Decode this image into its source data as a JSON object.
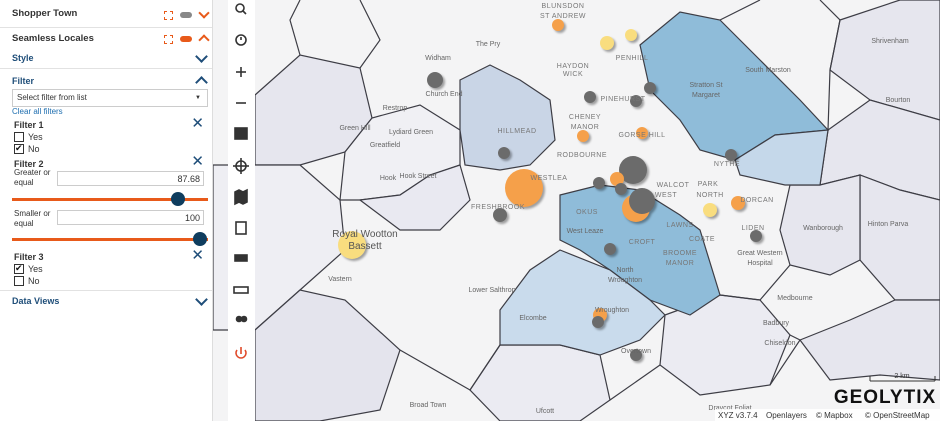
{
  "panel": {
    "layers": [
      {
        "name": "Shopper Town"
      },
      {
        "name": "Seamless Locales"
      }
    ],
    "sections": {
      "style": "Style",
      "filter": "Filter",
      "data_views": "Data Views"
    },
    "filter_select": "Select filter from list",
    "clear_all": "Clear all filters",
    "filters": [
      {
        "title": "Filter 1",
        "options": [
          {
            "label": "Yes",
            "checked": false
          },
          {
            "label": "No",
            "checked": true
          }
        ]
      },
      {
        "title": "Filter 2",
        "greater_label": "Greater or equal",
        "greater_value": 87.68,
        "smaller_label": "Smaller or equal",
        "smaller_value": 100
      },
      {
        "title": "Filter 3",
        "options": [
          {
            "label": "Yes",
            "checked": true
          },
          {
            "label": "No",
            "checked": false
          }
        ]
      }
    ]
  },
  "map": {
    "labels": [
      "BLUNSDON",
      "ST ANDREW",
      "The Pry",
      "Widham",
      "Church End",
      "HAYDON",
      "WICK",
      "PENHILL",
      "Stratton St",
      "Margaret",
      "South Marston",
      "Shrivenham",
      "Bourton",
      "Restrop",
      "Lydiard Green",
      "Green Hill",
      "Greatfield",
      "HILLMEAD",
      "CHENEY",
      "MANOR",
      "PINEHURST",
      "GORSE HILL",
      "RODBOURNE",
      "NYTHE",
      "Hook",
      "Hook Street",
      "WESTLEA",
      "FRESHBROOK",
      "WALCOT",
      "WEST",
      "PARK",
      "NORTH",
      "DORCAN",
      "OKUS",
      "West Leaze",
      "CROFT",
      "LAWNS",
      "COATE",
      "LIDEN",
      "BROOME",
      "MANOR",
      "Royal Wootton",
      "Bassett",
      "Wanborough",
      "Hinton Parva",
      "Great Western",
      "Hospital",
      "Vastern",
      "Lower Salthrop",
      "North",
      "Wroughton",
      "Wroughton",
      "Elcombe",
      "Medbourne",
      "Badbury",
      "Chiseldon",
      "Overtown",
      "Broad Town",
      "Ufcott",
      "Draycot Foliat"
    ],
    "brand": "GEOLYTIX",
    "scale": "2 km",
    "attribution": [
      "XYZ v3.7.4",
      "Openlayers",
      "© Mapbox",
      "© OpenStreetMap"
    ]
  }
}
